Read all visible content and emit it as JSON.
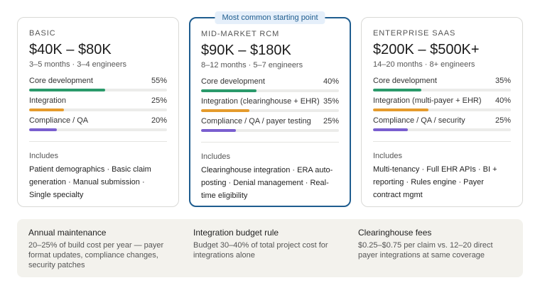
{
  "tiers": [
    {
      "name": "BASIC",
      "price": "$40K – $80K",
      "meta": "3–5 months · 3–4 engineers",
      "rows": [
        {
          "label": "Core development",
          "pct": "55%",
          "value": 55,
          "color": "#2a9a6b"
        },
        {
          "label": "Integration",
          "pct": "25%",
          "value": 25,
          "color": "#e59b2c"
        },
        {
          "label": "Compliance / QA",
          "pct": "20%",
          "value": 20,
          "color": "#7a5fcf"
        }
      ],
      "includes_label": "Includes",
      "includes": "Patient demographics · Basic claim generation · Manual submission · Single specialty"
    },
    {
      "badge": "Most common starting point",
      "name": "MID-MARKET RCM",
      "price": "$90K – $180K",
      "meta": "8–12 months · 5–7 engineers",
      "rows": [
        {
          "label": "Core development",
          "pct": "40%",
          "value": 40,
          "color": "#2a9a6b"
        },
        {
          "label": "Integration (clearinghouse + EHR)",
          "pct": "35%",
          "value": 35,
          "color": "#e59b2c"
        },
        {
          "label": "Compliance / QA / payer testing",
          "pct": "25%",
          "value": 25,
          "color": "#7a5fcf"
        }
      ],
      "includes_label": "Includes",
      "includes": "Clearinghouse integration · ERA auto-posting · Denial management · Real-time eligibility"
    },
    {
      "name": "ENTERPRISE SAAS",
      "price": "$200K – $500K+",
      "meta": "14–20 months · 8+ engineers",
      "rows": [
        {
          "label": "Core development",
          "pct": "35%",
          "value": 35,
          "color": "#2a9a6b"
        },
        {
          "label": "Integration (multi-payer + EHR)",
          "pct": "40%",
          "value": 40,
          "color": "#e59b2c"
        },
        {
          "label": "Compliance / QA / security",
          "pct": "25%",
          "value": 25,
          "color": "#7a5fcf"
        }
      ],
      "includes_label": "Includes",
      "includes": "Multi-tenancy · Full EHR APIs · BI + reporting · Rules engine · Payer contract mgmt"
    }
  ],
  "footer": [
    {
      "title": "Annual maintenance",
      "body": "20–25% of build cost per year — payer format updates, compliance changes, security patches"
    },
    {
      "title": "Integration budget rule",
      "body": "Budget 30–40% of total project cost for integrations alone"
    },
    {
      "title": "Clearinghouse fees",
      "body": "$0.25–$0.75 per claim vs. 12–20 direct payer integrations at same coverage"
    }
  ]
}
